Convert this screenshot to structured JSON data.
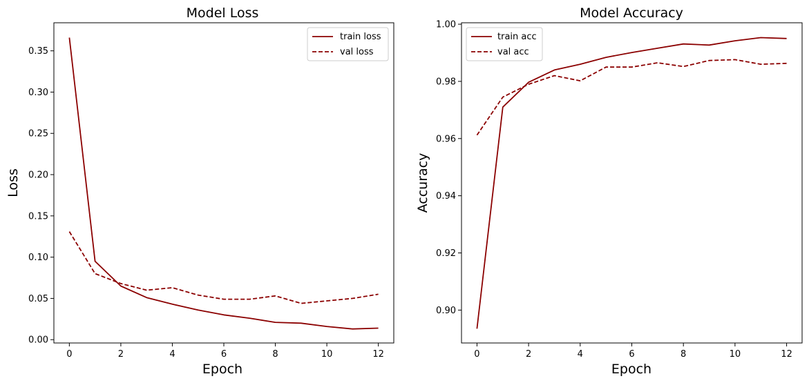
{
  "chart_data": [
    {
      "type": "line",
      "title": "Model Loss",
      "xlabel": "Epoch",
      "ylabel": "Loss",
      "xlim": [
        -0.6,
        12.6
      ],
      "ylim": [
        -0.004,
        0.384
      ],
      "xticks": [
        0,
        2,
        4,
        6,
        8,
        10,
        12
      ],
      "xtick_labels": [
        "0",
        "2",
        "4",
        "6",
        "8",
        "10",
        "12"
      ],
      "yticks": [
        0.0,
        0.05,
        0.1,
        0.15,
        0.2,
        0.25,
        0.3,
        0.35
      ],
      "ytick_labels": [
        "0.00",
        "0.05",
        "0.10",
        "0.15",
        "0.20",
        "0.25",
        "0.30",
        "0.35"
      ],
      "grid": false,
      "legend": "top-right",
      "x": [
        0,
        1,
        2,
        3,
        4,
        5,
        6,
        7,
        8,
        9,
        10,
        11,
        12
      ],
      "series": [
        {
          "name": "train loss",
          "style": "solid",
          "color": "#8b0000",
          "values": [
            0.366,
            0.095,
            0.065,
            0.051,
            0.043,
            0.036,
            0.03,
            0.026,
            0.021,
            0.02,
            0.016,
            0.013,
            0.014
          ]
        },
        {
          "name": "val loss",
          "style": "dashed",
          "color": "#8b0000",
          "values": [
            0.131,
            0.08,
            0.068,
            0.06,
            0.063,
            0.054,
            0.049,
            0.049,
            0.053,
            0.044,
            0.047,
            0.05,
            0.055
          ]
        }
      ]
    },
    {
      "type": "line",
      "title": "Model Accuracy",
      "xlabel": "Epoch",
      "ylabel": "Accuracy",
      "xlim": [
        -0.6,
        12.6
      ],
      "ylim": [
        0.8885,
        1.0005
      ],
      "xticks": [
        0,
        2,
        4,
        6,
        8,
        10,
        12
      ],
      "xtick_labels": [
        "0",
        "2",
        "4",
        "6",
        "8",
        "10",
        "12"
      ],
      "yticks": [
        0.9,
        0.92,
        0.94,
        0.96,
        0.98,
        1.0
      ],
      "ytick_labels": [
        "0.90",
        "0.92",
        "0.94",
        "0.96",
        "0.98",
        "1.00"
      ],
      "grid": false,
      "legend": "top-left",
      "x": [
        0,
        1,
        2,
        3,
        4,
        5,
        6,
        7,
        8,
        9,
        10,
        11,
        12
      ],
      "series": [
        {
          "name": "train acc",
          "style": "solid",
          "color": "#8b0000",
          "values": [
            0.8935,
            0.971,
            0.9797,
            0.984,
            0.986,
            0.9884,
            0.9901,
            0.9916,
            0.9931,
            0.9927,
            0.9942,
            0.9953,
            0.995
          ]
        },
        {
          "name": "val acc",
          "style": "dashed",
          "color": "#8b0000",
          "values": [
            0.9612,
            0.9745,
            0.979,
            0.982,
            0.9802,
            0.985,
            0.985,
            0.9865,
            0.9852,
            0.9873,
            0.9876,
            0.986,
            0.9863
          ]
        }
      ]
    }
  ]
}
